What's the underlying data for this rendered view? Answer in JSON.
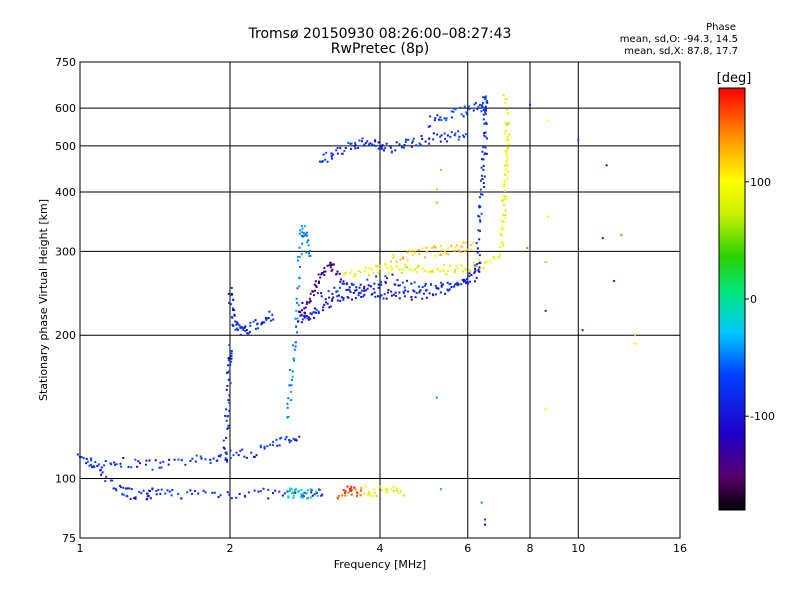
{
  "chart_data": {
    "type": "scatter",
    "title": "Tromsø 20150930 08:26:00–08:27:43",
    "subtitle": "RwPretec (8p)",
    "xlabel": "Frequency [MHz]",
    "ylabel": "Stationary phase Virtual Height [km]",
    "x_scale": "log",
    "y_scale": "log",
    "xlim": [
      1,
      16
    ],
    "ylim": [
      75,
      750
    ],
    "x_ticks": [
      1,
      2,
      4,
      6,
      8,
      10,
      16
    ],
    "y_ticks": [
      75,
      100,
      200,
      300,
      400,
      500,
      600,
      750
    ],
    "grid": true,
    "phase_info": {
      "heading": "Phase",
      "line_o": "mean, sd,O: -94.3, 14.5",
      "line_x": "mean, sd,X:  87.8, 17.7"
    },
    "colorbar": {
      "label": "[deg]",
      "range": [
        -180,
        180
      ],
      "ticks": [
        -100,
        0,
        100
      ]
    },
    "traces": [
      {
        "x": [
          1.0,
          1.05,
          1.1,
          1.2,
          1.35,
          1.5,
          1.7,
          1.9,
          2.0,
          2.2,
          2.4,
          2.6,
          2.75
        ],
        "y": [
          110,
          108,
          106,
          108,
          107,
          107,
          109,
          110,
          112,
          113,
          117,
          120,
          125
        ],
        "phase": -100
      },
      {
        "x": [
          1.1,
          1.2,
          1.25,
          1.35,
          1.4,
          1.5,
          1.7,
          2.0,
          2.3,
          2.6,
          2.9,
          3.1
        ],
        "y": [
          102,
          95,
          93,
          92,
          93,
          93,
          93,
          93,
          93,
          93,
          93,
          93
        ],
        "phase": -100
      },
      {
        "x": [
          2.6,
          2.7,
          2.8,
          3.0
        ],
        "y": [
          93,
          93,
          93,
          93
        ],
        "phase": -20
      },
      {
        "x": [
          3.3,
          3.45,
          3.55,
          3.7
        ],
        "y": [
          93,
          94,
          94,
          94
        ],
        "phase": 160
      },
      {
        "x": [
          3.75,
          3.9,
          4.2,
          4.5
        ],
        "y": [
          94,
          94,
          94,
          94
        ],
        "phase": 90
      },
      {
        "x": [
          1.95,
          1.97,
          1.98,
          2.0,
          2.0
        ],
        "y": [
          110,
          130,
          150,
          175,
          190
        ],
        "phase": -100
      },
      {
        "x": [
          2.0,
          2.02,
          2.05,
          2.1,
          2.15,
          2.25,
          2.35,
          2.45
        ],
        "y": [
          250,
          225,
          210,
          205,
          205,
          210,
          215,
          222
        ],
        "phase": -100
      },
      {
        "x": [
          2.6,
          2.65,
          2.7,
          2.72,
          2.75,
          2.8,
          2.85,
          2.9
        ],
        "y": [
          135,
          160,
          190,
          230,
          290,
          340,
          320,
          290
        ],
        "phase": -60
      },
      {
        "x": [
          2.75,
          2.8,
          2.9,
          3.0,
          3.1,
          3.2,
          3.3,
          3.5
        ],
        "y": [
          215,
          225,
          240,
          260,
          275,
          280,
          270,
          250
        ],
        "phase": -140
      },
      {
        "x": [
          2.8,
          2.9,
          3.0,
          3.2,
          3.4,
          3.6,
          3.8,
          4.0,
          4.3,
          4.6,
          5.0,
          5.4,
          5.8,
          6.2,
          6.4
        ],
        "y": [
          218,
          218,
          225,
          235,
          240,
          245,
          248,
          245,
          243,
          243,
          245,
          248,
          255,
          265,
          280
        ],
        "phase": -110
      },
      {
        "x": [
          3.0,
          3.3,
          3.6,
          3.9,
          4.2,
          4.6,
          5.0,
          5.5,
          6.0,
          6.4
        ],
        "y": [
          240,
          250,
          255,
          260,
          262,
          255,
          250,
          255,
          265,
          285
        ],
        "phase": -100
      },
      {
        "x": [
          6.3,
          6.35,
          6.4,
          6.45,
          6.5,
          6.5,
          6.5,
          6.5
        ],
        "y": [
          300,
          350,
          400,
          450,
          500,
          560,
          610,
          640
        ],
        "phase": -100
      },
      {
        "x": [
          3.4,
          3.7,
          4.0,
          4.3,
          4.7,
          5.1,
          5.5,
          6.0,
          6.5,
          7.0
        ],
        "y": [
          265,
          272,
          275,
          278,
          275,
          273,
          275,
          278,
          282,
          290
        ],
        "phase": 90
      },
      {
        "x": [
          4.2,
          4.6,
          5.0,
          5.4,
          5.8,
          6.2
        ],
        "y": [
          290,
          295,
          300,
          302,
          305,
          310
        ],
        "phase": 120
      },
      {
        "x": [
          7.0,
          7.05,
          7.1,
          7.15,
          7.2,
          7.2,
          7.2,
          7.15
        ],
        "y": [
          300,
          340,
          380,
          420,
          460,
          510,
          560,
          640
        ],
        "phase": 90
      },
      {
        "x": [
          3.05,
          3.2,
          3.4,
          3.6,
          3.8,
          4.0,
          4.2,
          4.5,
          4.8,
          5.2,
          5.6,
          6.0
        ],
        "y": [
          465,
          480,
          495,
          505,
          510,
          500,
          495,
          505,
          515,
          520,
          525,
          530
        ],
        "phase": -100
      },
      {
        "x": [
          5.0,
          5.4,
          5.8,
          6.2,
          6.6
        ],
        "y": [
          560,
          580,
          590,
          600,
          610
        ],
        "phase": -90
      }
    ],
    "scatter_points": {
      "x": [
        5.2,
        5.2,
        5.3,
        6.4,
        6.5,
        6.5,
        7.9,
        8.0,
        8.6,
        8.6,
        8.6,
        8.7,
        10.0,
        10.2,
        11.2,
        11.4,
        11.8,
        12.2,
        13.0,
        13.0,
        8.7,
        5.2,
        5.3,
        8.6
      ],
      "y": [
        405,
        380,
        95,
        89,
        82,
        80,
        305,
        610,
        285,
        225,
        140,
        355,
        515,
        205,
        320,
        455,
        260,
        325,
        200,
        192,
        565,
        148,
        445,
        140
      ],
      "phase": [
        60,
        140,
        -40,
        -60,
        -90,
        -120,
        150,
        -90,
        60,
        -100,
        90,
        90,
        -90,
        -100,
        -100,
        -110,
        -100,
        150,
        130,
        110,
        100,
        -60,
        60,
        100
      ]
    }
  }
}
